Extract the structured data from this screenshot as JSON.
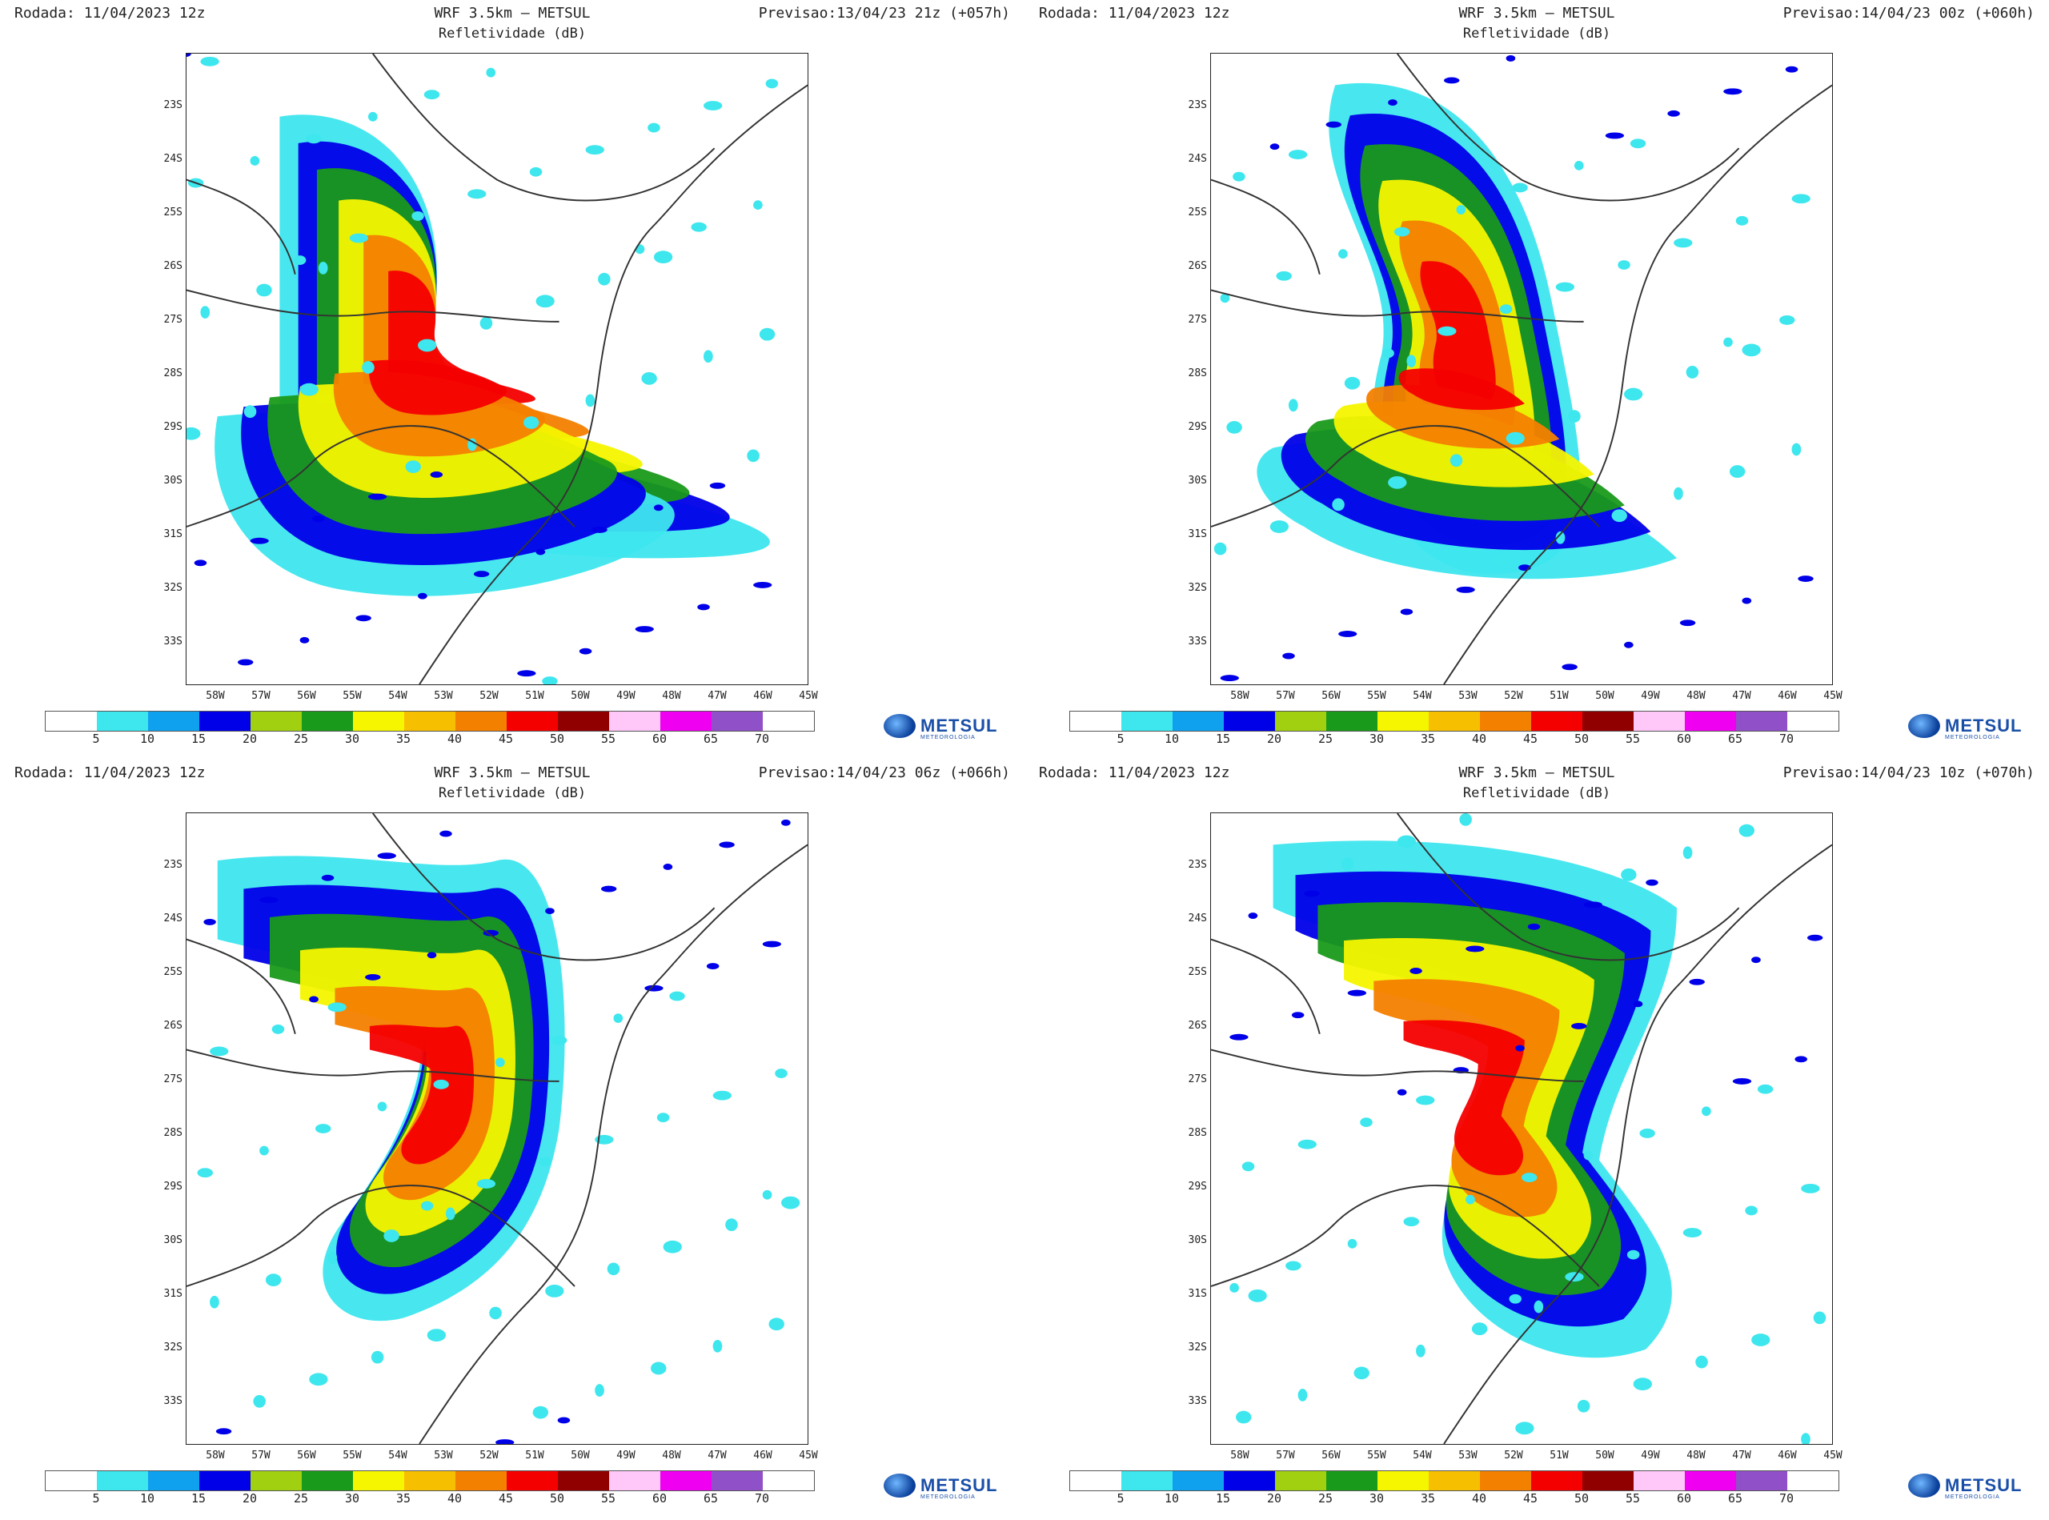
{
  "colorbar": {
    "labels": [
      "5",
      "10",
      "15",
      "20",
      "25",
      "30",
      "35",
      "40",
      "45",
      "50",
      "55",
      "60",
      "65",
      "70"
    ],
    "colors": [
      "#ffffff",
      "#3ee6ee",
      "#0fa0ee",
      "#0000e8",
      "#a0d010",
      "#1a9a1a",
      "#f6f600",
      "#f6c000",
      "#f48000",
      "#f40000",
      "#900000",
      "#ffc8f8",
      "#f000f0",
      "#9050c8",
      "#ffffff"
    ]
  },
  "lat_labels": [
    "23S",
    "24S",
    "25S",
    "26S",
    "27S",
    "28S",
    "29S",
    "30S",
    "31S",
    "32S",
    "33S"
  ],
  "lon_labels": [
    "58W",
    "57W",
    "56W",
    "55W",
    "54W",
    "53W",
    "52W",
    "51W",
    "50W",
    "49W",
    "48W",
    "47W",
    "46W",
    "45W"
  ],
  "logo": {
    "brand": "METSUL",
    "tagline": "METEOROLOGIA"
  },
  "panels": [
    {
      "run": "Rodada: 11/04/2023 12z",
      "title": "WRF 3.5km – METSUL",
      "subtitle": "Refletividade (dB)",
      "forecast": "Previsao:13/04/23 21z (+057h)"
    },
    {
      "run": "Rodada: 11/04/2023 12z",
      "title": "WRF 3.5km – METSUL",
      "subtitle": "Refletividade (dB)",
      "forecast": "Previsao:14/04/23 00z (+060h)"
    },
    {
      "run": "Rodada: 11/04/2023 12z",
      "title": "WRF 3.5km – METSUL",
      "subtitle": "Refletividade (dB)",
      "forecast": "Previsao:14/04/23 06z (+066h)"
    },
    {
      "run": "Rodada: 11/04/2023 12z",
      "title": "WRF 3.5km – METSUL",
      "subtitle": "Refletividade (dB)",
      "forecast": "Previsao:14/04/23 10z (+070h)"
    }
  ]
}
